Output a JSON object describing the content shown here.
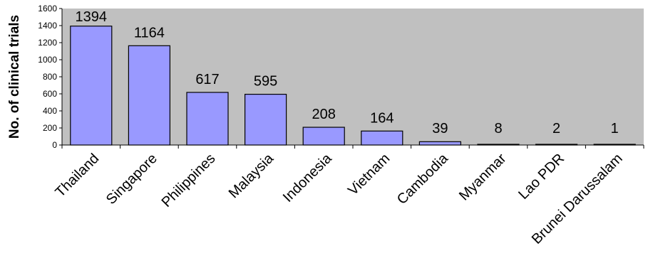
{
  "chart_data": {
    "type": "bar",
    "title": "",
    "xlabel": "",
    "ylabel": "No. of clinical trials",
    "ylim": [
      0,
      1600
    ],
    "yticks": [
      0,
      200,
      400,
      600,
      800,
      1000,
      1200,
      1400,
      1600
    ],
    "grid": false,
    "legend": "none",
    "categories": [
      "Thailand",
      "Singapore",
      "Philippines",
      "Malaysia",
      "Indonesia",
      "Vietnam",
      "Cambodia",
      "Myanmar",
      "Lao PDR",
      "Brunei Darussalam"
    ],
    "values": [
      1394,
      1164,
      617,
      595,
      208,
      164,
      39,
      8,
      2,
      1
    ],
    "data_labels": [
      "1394",
      "1164",
      "617",
      "595",
      "208",
      "164",
      "39",
      "8",
      "2",
      "1"
    ]
  },
  "colors": {
    "plot_background": "#c0c0c0",
    "bar_fill": "#9999ff",
    "bar_stroke": "#000000",
    "axis": "#000000"
  }
}
